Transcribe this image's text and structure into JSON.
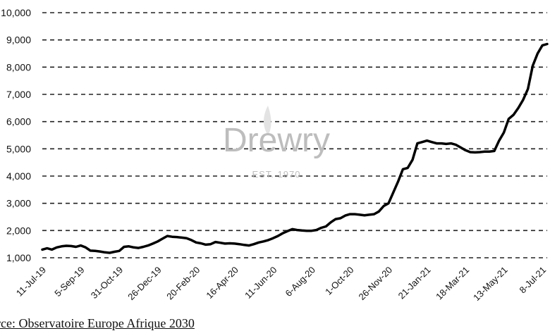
{
  "chart_data": {
    "type": "line",
    "title": "",
    "xlabel": "",
    "ylabel": "",
    "ylim": [
      1000,
      10000
    ],
    "yticks": [
      1000,
      2000,
      3000,
      4000,
      5000,
      6000,
      7000,
      8000,
      9000,
      10000
    ],
    "ytick_labels": [
      "1,000",
      "2,000",
      "3,000",
      "4,000",
      "5,000",
      "6,000",
      "7,000",
      "8,000",
      "9,000",
      "10,000"
    ],
    "xtick_labels": [
      "11-Jul-19",
      "5-Sep-19",
      "31-Oct-19",
      "26-Dec-19",
      "20-Feb-20",
      "16-Apr-20",
      "11-Jun-20",
      "6-Aug-20",
      "1-Oct-20",
      "26-Nov-20",
      "21-Jan-21",
      "18-Mar-21",
      "13-May-21",
      "8-Jul-21"
    ],
    "grid": "horizontal-dashed",
    "legend": "none",
    "series": [
      {
        "color": "#000000",
        "x": [
          "11-Jul-19",
          "18-Jul-19",
          "25-Jul-19",
          "1-Aug-19",
          "8-Aug-19",
          "15-Aug-19",
          "22-Aug-19",
          "29-Aug-19",
          "5-Sep-19",
          "12-Sep-19",
          "19-Sep-19",
          "26-Sep-19",
          "3-Oct-19",
          "10-Oct-19",
          "17-Oct-19",
          "24-Oct-19",
          "31-Oct-19",
          "7-Nov-19",
          "14-Nov-19",
          "21-Nov-19",
          "28-Nov-19",
          "5-Dec-19",
          "12-Dec-19",
          "19-Dec-19",
          "26-Dec-19",
          "2-Jan-20",
          "9-Jan-20",
          "16-Jan-20",
          "23-Jan-20",
          "30-Jan-20",
          "6-Feb-20",
          "13-Feb-20",
          "20-Feb-20",
          "27-Feb-20",
          "5-Mar-20",
          "12-Mar-20",
          "19-Mar-20",
          "26-Mar-20",
          "2-Apr-20",
          "9-Apr-20",
          "16-Apr-20",
          "23-Apr-20",
          "30-Apr-20",
          "7-May-20",
          "14-May-20",
          "21-May-20",
          "28-May-20",
          "4-Jun-20",
          "11-Jun-20",
          "18-Jun-20",
          "25-Jun-20",
          "2-Jul-20",
          "9-Jul-20",
          "16-Jul-20",
          "23-Jul-20",
          "30-Jul-20",
          "6-Aug-20",
          "13-Aug-20",
          "20-Aug-20",
          "27-Aug-20",
          "3-Sep-20",
          "10-Sep-20",
          "17-Sep-20",
          "24-Sep-20",
          "1-Oct-20",
          "8-Oct-20",
          "15-Oct-20",
          "22-Oct-20",
          "29-Oct-20",
          "5-Nov-20",
          "12-Nov-20",
          "19-Nov-20",
          "26-Nov-20",
          "3-Dec-20",
          "10-Dec-20",
          "17-Dec-20",
          "24-Dec-20",
          "31-Dec-20",
          "7-Jan-21",
          "14-Jan-21",
          "21-Jan-21",
          "28-Jan-21",
          "4-Feb-21",
          "11-Feb-21",
          "18-Feb-21",
          "25-Feb-21",
          "4-Mar-21",
          "11-Mar-21",
          "18-Mar-21",
          "25-Mar-21",
          "1-Apr-21",
          "8-Apr-21",
          "15-Apr-21",
          "22-Apr-21",
          "29-Apr-21",
          "6-May-21",
          "13-May-21",
          "20-May-21",
          "27-May-21",
          "3-Jun-21",
          "10-Jun-21",
          "17-Jun-21",
          "24-Jun-21",
          "1-Jul-21",
          "8-Jul-21",
          "15-Jul-21"
        ],
        "values": [
          1300,
          1350,
          1300,
          1380,
          1420,
          1440,
          1430,
          1400,
          1450,
          1380,
          1260,
          1250,
          1230,
          1200,
          1180,
          1220,
          1250,
          1400,
          1420,
          1380,
          1360,
          1400,
          1450,
          1520,
          1600,
          1700,
          1800,
          1770,
          1760,
          1740,
          1720,
          1650,
          1560,
          1530,
          1480,
          1500,
          1580,
          1550,
          1520,
          1530,
          1520,
          1500,
          1470,
          1450,
          1500,
          1560,
          1600,
          1650,
          1720,
          1800,
          1900,
          1980,
          2050,
          2020,
          2000,
          1990,
          1990,
          2020,
          2100,
          2150,
          2300,
          2420,
          2450,
          2550,
          2600,
          2600,
          2580,
          2560,
          2580,
          2600,
          2700,
          2900,
          3000,
          3400,
          3800,
          4250,
          4300,
          4600,
          5200,
          5250,
          5300,
          5250,
          5200,
          5200,
          5180,
          5200,
          5150,
          5050,
          4950,
          4880,
          4870,
          4880,
          4900,
          4900,
          4920,
          5300,
          5600,
          6100,
          6250,
          6500,
          6800,
          7200,
          8050,
          8500,
          8800,
          8850
        ]
      }
    ]
  },
  "watermark": {
    "brand": "Drewry",
    "est": "EST. 1970"
  },
  "source": "urce: Observatoire Europe Afrique 2030"
}
